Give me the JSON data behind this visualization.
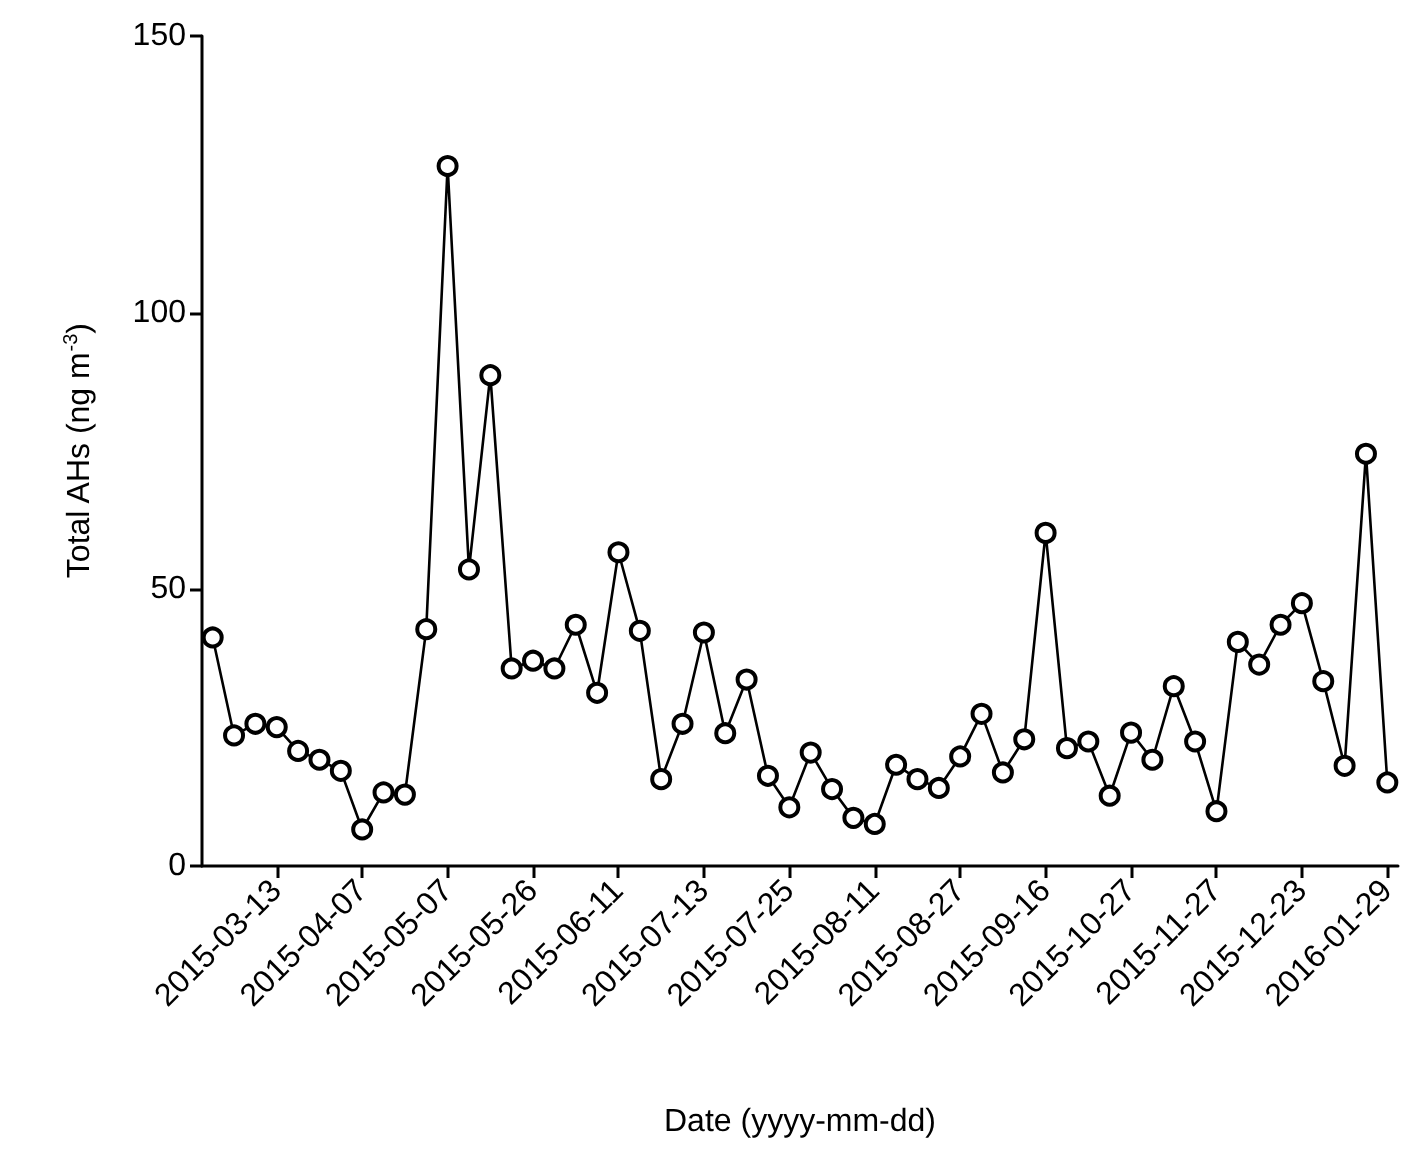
{
  "chart_data": {
    "type": "line",
    "xlabel": "Date (yyyy-mm-dd)",
    "ylabel": "Total AHs (ng m$^{-3}$)",
    "categories": [
      null,
      null,
      null,
      "2015-03-13",
      null,
      null,
      null,
      "2015-04-07",
      null,
      null,
      null,
      "2015-05-07",
      null,
      null,
      null,
      "2015-05-26",
      null,
      null,
      null,
      "2015-06-11",
      null,
      null,
      null,
      "2015-07-13",
      null,
      null,
      null,
      "2015-07-25",
      null,
      null,
      null,
      "2015-08-11",
      null,
      null,
      null,
      "2015-08-27",
      null,
      null,
      null,
      "2015-09-16",
      null,
      null,
      null,
      "2015-10-27",
      null,
      null,
      null,
      "2015-11-27",
      null,
      null,
      null,
      "2015-12-23",
      null,
      null,
      null,
      "2016-01-29"
    ],
    "series": [
      {
        "color": "#000000",
        "values": [
          41.3,
          23.6,
          25.7,
          25.1,
          20.8,
          19.2,
          17.2,
          6.6,
          13.3,
          12.9,
          42.8,
          126.5,
          53.6,
          88.7,
          35.7,
          37.1,
          35.7,
          43.6,
          31.3,
          56.7,
          42.5,
          15.7,
          25.7,
          42.2,
          24.0,
          33.7,
          16.3,
          10.6,
          20.5,
          13.9,
          8.7,
          7.6,
          18.3,
          15.7,
          14.1,
          19.8,
          27.5,
          16.9,
          22.9,
          60.2,
          21.3,
          22.5,
          12.7,
          24.1,
          19.2,
          32.5,
          22.5,
          9.9,
          40.5,
          36.4,
          43.6,
          47.5,
          33.4,
          18.1,
          74.5,
          15.1
        ]
      }
    ],
    "ylim": [
      0,
      150
    ],
    "yticks": [
      0,
      50,
      100,
      150
    ],
    "grid": false,
    "marker": "circle",
    "line_style": "solid"
  }
}
